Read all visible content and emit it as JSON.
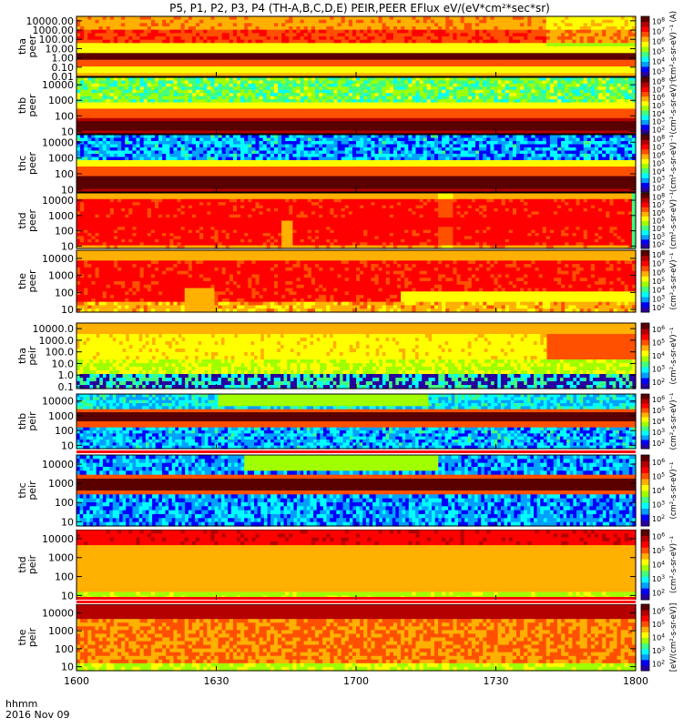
{
  "chart_data": {
    "type": "heatmap",
    "title": "P5, P1, P2, P3, P4 (TH-A,B,C,D,E) PEIR,PEER EFlux eV/(eV*cm²*sec*sr)",
    "x": {
      "ticks": [
        "1600",
        "1630",
        "1700",
        "1730",
        "1800"
      ],
      "tick_minutes": [
        0,
        30,
        60,
        90,
        120
      ],
      "range_minutes": [
        0,
        120
      ],
      "label_line1": "hhmm",
      "label_line2": "2016 Nov 09"
    },
    "panels": [
      {
        "id": "tha-peer",
        "name": "tha\npeer",
        "species": "electron",
        "pattern": "tha_e",
        "yticks": [
          "10000.00",
          "1000.00",
          "100.00",
          "10.00",
          "1.00",
          "0.10",
          "0.01"
        ],
        "ylim": [
          0.01,
          30000
        ],
        "cbar": [
          3,
          4,
          5,
          6,
          7,
          8
        ],
        "cbar_unit": "(cm²-s-sr-eV)⁻¹ (A)"
      },
      {
        "id": "thb-peer",
        "name": "thb\npeer",
        "species": "electron",
        "pattern": "thb_e",
        "yticks": [
          "10000",
          "1000",
          "100",
          "10"
        ],
        "ylim": [
          7,
          30000
        ],
        "cbar": [
          2,
          3,
          4,
          5,
          6,
          7,
          8
        ],
        "cbar_unit": "(cm²-s-sr-eV)⁻¹"
      },
      {
        "id": "thc-peer",
        "name": "thc\npeer",
        "species": "electron",
        "pattern": "thc_e",
        "yticks": [
          "10000",
          "1000",
          "100",
          "10"
        ],
        "ylim": [
          7,
          30000
        ],
        "cbar": [
          2,
          3,
          4,
          5,
          6,
          7,
          8
        ],
        "cbar_unit": "(cm²-s-sr-eV)⁻¹"
      },
      {
        "id": "thd-peer",
        "name": "thd\npeer",
        "species": "electron",
        "pattern": "thd_e",
        "yticks": [
          "10000",
          "1000",
          "100",
          "10"
        ],
        "ylim": [
          7,
          30000
        ],
        "cbar": [
          2,
          3,
          4,
          5,
          6,
          7,
          8
        ],
        "cbar_unit": "(cm²-s-sr-eV)⁻¹"
      },
      {
        "id": "the-peer",
        "name": "the\npeer",
        "species": "electron",
        "pattern": "the_e",
        "yticks": [
          "10000",
          "1000",
          "100",
          "10"
        ],
        "ylim": [
          7,
          30000
        ],
        "cbar": [
          2,
          3,
          4,
          5,
          6,
          7,
          8
        ],
        "cbar_unit": "(cm²-s-sr-eV)⁻¹"
      },
      {
        "id": "tha-peir",
        "name": "tha\npeir",
        "species": "ion",
        "pattern": "tha_i",
        "yticks": [
          "10000.0",
          "1000.0",
          "100.0",
          "10.0",
          "1.0",
          "0.1"
        ],
        "ylim": [
          0.07,
          30000
        ],
        "cbar": [
          2,
          3,
          4,
          5,
          6
        ],
        "cbar_unit": "(cm²-s-sr-eV)⁻¹"
      },
      {
        "id": "thb-peir",
        "name": "thb\npeir",
        "species": "ion",
        "pattern": "thb_i",
        "yticks": [
          "10000",
          "1000",
          "100",
          "10"
        ],
        "ylim": [
          6,
          30000
        ],
        "cbar": [
          2,
          3,
          4,
          5,
          6
        ],
        "cbar_unit": "(cm²-s-sr-eV)⁻¹"
      },
      {
        "id": "thc-peir",
        "name": "thc\npeir",
        "species": "ion",
        "pattern": "thc_i",
        "yticks": [
          "10000",
          "1000",
          "100",
          "10"
        ],
        "ylim": [
          6,
          30000
        ],
        "cbar": [
          2,
          3,
          4,
          5,
          6
        ],
        "cbar_unit": "(cm²-s-sr-eV)⁻¹"
      },
      {
        "id": "thd-peir",
        "name": "thd\npeir",
        "species": "ion",
        "pattern": "thd_i",
        "yticks": [
          "10000",
          "1000",
          "100",
          "10"
        ],
        "ylim": [
          6,
          30000
        ],
        "cbar": [
          2,
          3,
          4,
          5,
          6
        ],
        "cbar_unit": "(cm²-s-sr-eV)⁻¹"
      },
      {
        "id": "the-peir",
        "name": "the\npeir",
        "species": "ion",
        "pattern": "the_i",
        "yticks": [
          "10000",
          "1000",
          "100",
          "10"
        ],
        "ylim": [
          6,
          30000
        ],
        "cbar": [
          2,
          3,
          4,
          5,
          6
        ],
        "cbar_unit": "[eV/(cm²-s-sr-eV)]"
      }
    ],
    "colormap": [
      "#2800a0",
      "#0000ff",
      "#00a0ff",
      "#00ffff",
      "#40ff80",
      "#a0ff00",
      "#ffff00",
      "#ffb000",
      "#ff5000",
      "#ff0000",
      "#b40000",
      "#5a0000"
    ]
  }
}
